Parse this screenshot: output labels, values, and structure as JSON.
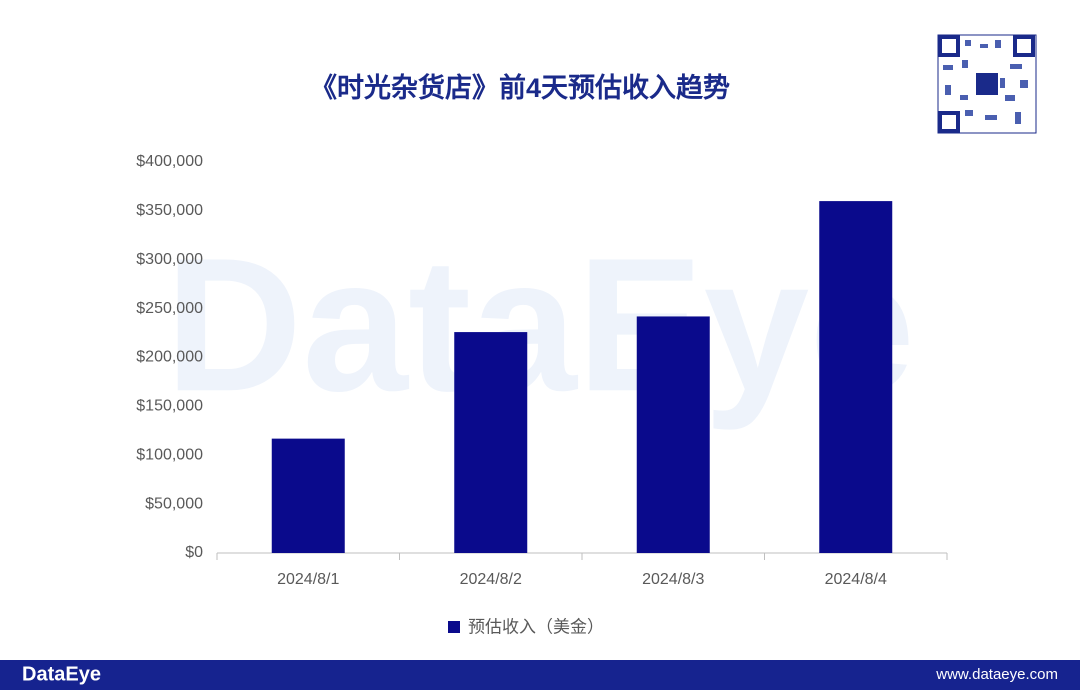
{
  "chart_data": {
    "type": "bar",
    "title": "《时光杂货店》前4天预估收入趋势",
    "categories": [
      "2024/8/1",
      "2024/8/2",
      "2024/8/3",
      "2024/8/4"
    ],
    "series": [
      {
        "name": "预估收入（美金）",
        "color": "#0a0a8c",
        "values": [
          117000,
          226000,
          242000,
          360000
        ]
      }
    ],
    "ylim": [
      0,
      400000
    ],
    "yticks": [
      {
        "value": 0,
        "label": "$0"
      },
      {
        "value": 50000,
        "label": "$50,000"
      },
      {
        "value": 100000,
        "label": "$100,000"
      },
      {
        "value": 150000,
        "label": "$150,000"
      },
      {
        "value": 200000,
        "label": "$200,000"
      },
      {
        "value": 250000,
        "label": "$250,000"
      },
      {
        "value": 300000,
        "label": "$300,000"
      },
      {
        "value": 350000,
        "label": "$350,000"
      },
      {
        "value": 400000,
        "label": "$400,000"
      }
    ],
    "grid": false,
    "legend": "bottom"
  },
  "watermark": "DataEye",
  "footer": {
    "brand": "DataEye",
    "url": "www.dataeye.com"
  }
}
